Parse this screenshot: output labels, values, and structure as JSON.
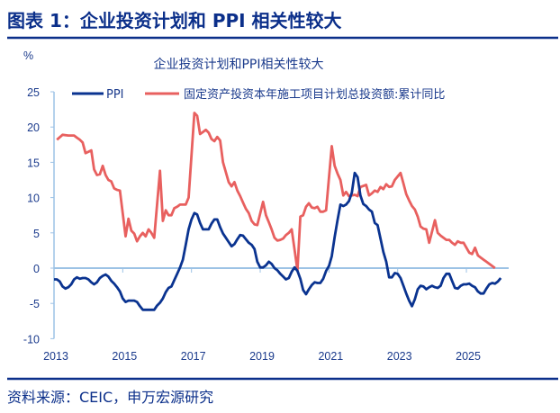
{
  "header": {
    "title": "图表 1：企业投资计划和 PPI 相关性较大"
  },
  "footer": {
    "source": "资料来源：CEIC，申万宏源研究"
  },
  "chart_data": {
    "type": "line",
    "title": "企业投资计划和PPI相关性较大",
    "ylabel": "%",
    "ylim": [
      -10,
      25
    ],
    "yticks": [
      "25",
      "20",
      "15",
      "10",
      "5",
      "0",
      "-5",
      "-10"
    ],
    "xticks": [
      "2013",
      "2015",
      "2017",
      "2019",
      "2021",
      "2023",
      "2025"
    ],
    "grid": false,
    "legend_placement": "top",
    "colors": {
      "ppi": "#0a3390",
      "fai": "#e8605f",
      "axis": "#9cc2e5"
    },
    "series": [
      {
        "name": "PPI",
        "points": [
          [
            "2013-01",
            -1.6
          ],
          [
            "2013-02",
            -1.6
          ],
          [
            "2013-03",
            -1.9
          ],
          [
            "2013-04",
            -2.6
          ],
          [
            "2013-05",
            -2.9
          ],
          [
            "2013-06",
            -2.7
          ],
          [
            "2013-07",
            -2.3
          ],
          [
            "2013-08",
            -1.6
          ],
          [
            "2013-09",
            -1.3
          ],
          [
            "2013-10",
            -1.5
          ],
          [
            "2013-11",
            -1.4
          ],
          [
            "2013-12",
            -1.4
          ],
          [
            "2014-01",
            -1.6
          ],
          [
            "2014-02",
            -2.0
          ],
          [
            "2014-03",
            -2.3
          ],
          [
            "2014-04",
            -2.0
          ],
          [
            "2014-05",
            -1.4
          ],
          [
            "2014-06",
            -1.1
          ],
          [
            "2014-07",
            -0.9
          ],
          [
            "2014-08",
            -1.2
          ],
          [
            "2014-09",
            -1.8
          ],
          [
            "2014-10",
            -2.2
          ],
          [
            "2014-11",
            -2.7
          ],
          [
            "2014-12",
            -3.3
          ],
          [
            "2015-01",
            -4.3
          ],
          [
            "2015-02",
            -4.8
          ],
          [
            "2015-03",
            -4.6
          ],
          [
            "2015-04",
            -4.6
          ],
          [
            "2015-05",
            -4.6
          ],
          [
            "2015-06",
            -4.8
          ],
          [
            "2015-07",
            -5.4
          ],
          [
            "2015-08",
            -5.9
          ],
          [
            "2015-09",
            -5.9
          ],
          [
            "2015-10",
            -5.9
          ],
          [
            "2015-11",
            -5.9
          ],
          [
            "2015-12",
            -5.9
          ],
          [
            "2016-01",
            -5.3
          ],
          [
            "2016-02",
            -4.9
          ],
          [
            "2016-03",
            -4.3
          ],
          [
            "2016-04",
            -3.4
          ],
          [
            "2016-05",
            -2.8
          ],
          [
            "2016-06",
            -2.6
          ],
          [
            "2016-07",
            -1.7
          ],
          [
            "2016-08",
            -0.8
          ],
          [
            "2016-09",
            0.1
          ],
          [
            "2016-10",
            1.2
          ],
          [
            "2016-11",
            3.3
          ],
          [
            "2016-12",
            5.5
          ],
          [
            "2017-01",
            6.9
          ],
          [
            "2017-02",
            7.8
          ],
          [
            "2017-03",
            7.6
          ],
          [
            "2017-04",
            6.4
          ],
          [
            "2017-05",
            5.5
          ],
          [
            "2017-06",
            5.5
          ],
          [
            "2017-07",
            5.5
          ],
          [
            "2017-08",
            6.3
          ],
          [
            "2017-09",
            6.9
          ],
          [
            "2017-10",
            6.9
          ],
          [
            "2017-11",
            5.8
          ],
          [
            "2017-12",
            4.9
          ],
          [
            "2018-01",
            4.3
          ],
          [
            "2018-02",
            3.7
          ],
          [
            "2018-03",
            3.1
          ],
          [
            "2018-04",
            3.4
          ],
          [
            "2018-05",
            4.1
          ],
          [
            "2018-06",
            4.7
          ],
          [
            "2018-07",
            4.6
          ],
          [
            "2018-08",
            4.1
          ],
          [
            "2018-09",
            3.6
          ],
          [
            "2018-10",
            3.3
          ],
          [
            "2018-11",
            2.7
          ],
          [
            "2018-12",
            0.9
          ],
          [
            "2019-01",
            0.1
          ],
          [
            "2019-02",
            0.1
          ],
          [
            "2019-03",
            0.4
          ],
          [
            "2019-04",
            0.9
          ],
          [
            "2019-05",
            0.6
          ],
          [
            "2019-06",
            0.0
          ],
          [
            "2019-07",
            -0.3
          ],
          [
            "2019-08",
            -0.8
          ],
          [
            "2019-09",
            -1.2
          ],
          [
            "2019-10",
            -1.6
          ],
          [
            "2019-11",
            -1.4
          ],
          [
            "2019-12",
            -0.5
          ],
          [
            "2020-01",
            0.1
          ],
          [
            "2020-02",
            -0.4
          ],
          [
            "2020-03",
            -1.5
          ],
          [
            "2020-04",
            -3.1
          ],
          [
            "2020-05",
            -3.7
          ],
          [
            "2020-06",
            -3.0
          ],
          [
            "2020-07",
            -2.4
          ],
          [
            "2020-08",
            -2.0
          ],
          [
            "2020-09",
            -2.1
          ],
          [
            "2020-10",
            -2.1
          ],
          [
            "2020-11",
            -1.5
          ],
          [
            "2020-12",
            -0.4
          ],
          [
            "2021-01",
            0.3
          ],
          [
            "2021-02",
            1.7
          ],
          [
            "2021-03",
            4.4
          ],
          [
            "2021-04",
            6.8
          ],
          [
            "2021-05",
            9.0
          ],
          [
            "2021-06",
            8.8
          ],
          [
            "2021-07",
            9.0
          ],
          [
            "2021-08",
            9.5
          ],
          [
            "2021-09",
            10.7
          ],
          [
            "2021-10",
            13.5
          ],
          [
            "2021-11",
            12.9
          ],
          [
            "2021-12",
            10.3
          ],
          [
            "2022-01",
            9.1
          ],
          [
            "2022-02",
            8.8
          ],
          [
            "2022-03",
            8.3
          ],
          [
            "2022-04",
            8.0
          ],
          [
            "2022-05",
            6.4
          ],
          [
            "2022-06",
            6.1
          ],
          [
            "2022-07",
            4.2
          ],
          [
            "2022-08",
            2.3
          ],
          [
            "2022-09",
            0.9
          ],
          [
            "2022-10",
            -1.3
          ],
          [
            "2022-11",
            -1.3
          ],
          [
            "2022-12",
            -0.7
          ],
          [
            "2023-01",
            -0.8
          ],
          [
            "2023-02",
            -1.4
          ],
          [
            "2023-03",
            -2.5
          ],
          [
            "2023-04",
            -3.6
          ],
          [
            "2023-05",
            -4.6
          ],
          [
            "2023-06",
            -5.4
          ],
          [
            "2023-07",
            -4.4
          ],
          [
            "2023-08",
            -3.0
          ],
          [
            "2023-09",
            -2.5
          ],
          [
            "2023-10",
            -2.6
          ],
          [
            "2023-11",
            -3.0
          ],
          [
            "2023-12",
            -2.7
          ],
          [
            "2024-01",
            -2.5
          ],
          [
            "2024-02",
            -2.7
          ],
          [
            "2024-03",
            -2.8
          ],
          [
            "2024-04",
            -2.5
          ],
          [
            "2024-05",
            -1.4
          ],
          [
            "2024-06",
            -0.8
          ],
          [
            "2024-07",
            -0.8
          ],
          [
            "2024-08",
            -1.8
          ],
          [
            "2024-09",
            -2.8
          ],
          [
            "2024-10",
            -2.9
          ],
          [
            "2024-11",
            -2.5
          ],
          [
            "2024-12",
            -2.3
          ],
          [
            "2025-01",
            -2.3
          ],
          [
            "2025-02",
            -2.2
          ],
          [
            "2025-03",
            -2.5
          ],
          [
            "2025-04",
            -2.7
          ],
          [
            "2025-05",
            -3.3
          ],
          [
            "2025-06",
            -3.6
          ],
          [
            "2025-07",
            -3.6
          ],
          [
            "2025-08",
            -2.9
          ],
          [
            "2025-09",
            -2.3
          ],
          [
            "2025-10",
            -2.1
          ],
          [
            "2025-11",
            -2.2
          ],
          [
            "2025-12",
            -1.9
          ],
          [
            "2026-01",
            -1.4
          ]
        ]
      },
      {
        "name": "固定资产投资本年施工项目计划总投资额:累计同比",
        "points": [
          [
            "2013-02",
            18.2
          ],
          [
            "2013-04",
            18.9
          ],
          [
            "2013-06",
            18.8
          ],
          [
            "2013-08",
            18.8
          ],
          [
            "2013-09",
            18.5
          ],
          [
            "2013-10",
            18.2
          ],
          [
            "2013-11",
            17.8
          ],
          [
            "2013-12",
            16.3
          ],
          [
            "2014-02",
            16.7
          ],
          [
            "2014-03",
            14.0
          ],
          [
            "2014-04",
            13.2
          ],
          [
            "2014-05",
            13.3
          ],
          [
            "2014-06",
            14.5
          ],
          [
            "2014-07",
            13.2
          ],
          [
            "2014-08",
            12.5
          ],
          [
            "2014-09",
            12.3
          ],
          [
            "2014-10",
            11.3
          ],
          [
            "2014-11",
            11.1
          ],
          [
            "2014-12",
            11.0
          ],
          [
            "2015-02",
            4.5
          ],
          [
            "2015-03",
            7.0
          ],
          [
            "2015-04",
            5.3
          ],
          [
            "2015-05",
            4.9
          ],
          [
            "2015-06",
            3.8
          ],
          [
            "2015-07",
            4.5
          ],
          [
            "2015-08",
            5.0
          ],
          [
            "2015-09",
            4.5
          ],
          [
            "2015-10",
            5.5
          ],
          [
            "2015-11",
            5.0
          ],
          [
            "2015-12",
            4.3
          ],
          [
            "2016-02",
            13.8
          ],
          [
            "2016-03",
            6.7
          ],
          [
            "2016-04",
            8.2
          ],
          [
            "2016-05",
            7.5
          ],
          [
            "2016-06",
            7.5
          ],
          [
            "2016-07",
            8.5
          ],
          [
            "2016-08",
            8.7
          ],
          [
            "2016-09",
            9.0
          ],
          [
            "2016-10",
            9.0
          ],
          [
            "2016-11",
            9.0
          ],
          [
            "2016-12",
            10.0
          ],
          [
            "2017-02",
            22.0
          ],
          [
            "2017-03",
            21.6
          ],
          [
            "2017-04",
            19.0
          ],
          [
            "2017-05",
            19.3
          ],
          [
            "2017-06",
            19.6
          ],
          [
            "2017-07",
            19.2
          ],
          [
            "2017-08",
            18.3
          ],
          [
            "2017-09",
            18.0
          ],
          [
            "2017-10",
            18.6
          ],
          [
            "2017-11",
            18.1
          ],
          [
            "2017-12",
            15.0
          ],
          [
            "2018-02",
            12.2
          ],
          [
            "2018-03",
            11.6
          ],
          [
            "2018-04",
            12.2
          ],
          [
            "2018-05",
            11.0
          ],
          [
            "2018-06",
            10.2
          ],
          [
            "2018-07",
            9.3
          ],
          [
            "2018-08",
            8.4
          ],
          [
            "2018-09",
            7.8
          ],
          [
            "2018-10",
            6.7
          ],
          [
            "2018-11",
            6.2
          ],
          [
            "2018-12",
            6.1
          ],
          [
            "2019-02",
            9.4
          ],
          [
            "2019-03",
            7.5
          ],
          [
            "2019-04",
            6.5
          ],
          [
            "2019-05",
            5.5
          ],
          [
            "2019-06",
            4.3
          ],
          [
            "2019-07",
            3.9
          ],
          [
            "2019-08",
            4.0
          ],
          [
            "2019-09",
            4.2
          ],
          [
            "2019-10",
            4.7
          ],
          [
            "2019-11",
            5.0
          ],
          [
            "2019-12",
            5.5
          ],
          [
            "2020-02",
            -0.3
          ],
          [
            "2020-03",
            7.3
          ],
          [
            "2020-04",
            7.5
          ],
          [
            "2020-05",
            8.7
          ],
          [
            "2020-06",
            9.2
          ],
          [
            "2020-07",
            8.6
          ],
          [
            "2020-08",
            8.5
          ],
          [
            "2020-09",
            8.7
          ],
          [
            "2020-10",
            8.0
          ],
          [
            "2020-11",
            8.0
          ],
          [
            "2020-12",
            8.2
          ],
          [
            "2021-02",
            17.3
          ],
          [
            "2021-03",
            14.5
          ],
          [
            "2021-04",
            13.4
          ],
          [
            "2021-05",
            12.5
          ],
          [
            "2021-06",
            10.3
          ],
          [
            "2021-07",
            10.8
          ],
          [
            "2021-08",
            10.2
          ],
          [
            "2021-09",
            10.3
          ],
          [
            "2021-10",
            10.4
          ],
          [
            "2021-11",
            10.2
          ],
          [
            "2021-12",
            11.5
          ],
          [
            "2022-02",
            11.8
          ],
          [
            "2022-03",
            10.3
          ],
          [
            "2022-04",
            10.6
          ],
          [
            "2022-05",
            11.0
          ],
          [
            "2022-06",
            10.8
          ],
          [
            "2022-07",
            11.5
          ],
          [
            "2022-08",
            11.2
          ],
          [
            "2022-09",
            11.9
          ],
          [
            "2022-10",
            11.5
          ],
          [
            "2022-11",
            11.6
          ],
          [
            "2022-12",
            12.5
          ],
          [
            "2023-02",
            13.5
          ],
          [
            "2023-03",
            12.0
          ],
          [
            "2023-04",
            10.5
          ],
          [
            "2023-05",
            9.6
          ],
          [
            "2023-06",
            8.8
          ],
          [
            "2023-07",
            8.3
          ],
          [
            "2023-08",
            7.3
          ],
          [
            "2023-09",
            5.9
          ],
          [
            "2023-10",
            5.6
          ],
          [
            "2023-11",
            5.5
          ],
          [
            "2023-12",
            3.6
          ],
          [
            "2024-02",
            6.8
          ],
          [
            "2024-03",
            5.0
          ],
          [
            "2024-04",
            4.6
          ],
          [
            "2024-05",
            4.3
          ],
          [
            "2024-06",
            4.0
          ],
          [
            "2024-07",
            4.0
          ],
          [
            "2024-08",
            3.6
          ],
          [
            "2024-09",
            3.3
          ],
          [
            "2024-10",
            3.8
          ],
          [
            "2024-11",
            3.6
          ],
          [
            "2024-12",
            3.6
          ],
          [
            "2025-02",
            2.2
          ],
          [
            "2025-03",
            2.0
          ],
          [
            "2025-04",
            2.9
          ],
          [
            "2025-05",
            1.8
          ],
          [
            "2025-06",
            1.5
          ],
          [
            "2025-07",
            1.2
          ],
          [
            "2025-08",
            0.9
          ],
          [
            "2025-09",
            0.6
          ],
          [
            "2025-10",
            0.3
          ],
          [
            "2025-11",
            0.0
          ]
        ]
      }
    ]
  }
}
